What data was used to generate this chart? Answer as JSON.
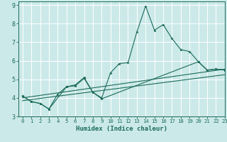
{
  "xlabel": "Humidex (Indice chaleur)",
  "xlim": [
    -0.5,
    23
  ],
  "ylim": [
    3,
    9.2
  ],
  "yticks": [
    3,
    4,
    5,
    6,
    7,
    8,
    9
  ],
  "xticks": [
    0,
    1,
    2,
    3,
    4,
    5,
    6,
    7,
    8,
    9,
    10,
    11,
    12,
    13,
    14,
    15,
    16,
    17,
    18,
    19,
    20,
    21,
    22,
    23
  ],
  "bg_color": "#cce9e9",
  "grid_color": "#ffffff",
  "line_color": "#1a6b5a",
  "line1_x": [
    0,
    1,
    2,
    3,
    4,
    5,
    6,
    7,
    8,
    9,
    10,
    11,
    12,
    13,
    14,
    15,
    16,
    17,
    18,
    19,
    20,
    21,
    22,
    23
  ],
  "line1_y": [
    4.1,
    3.8,
    3.7,
    3.4,
    4.2,
    4.6,
    4.7,
    5.1,
    4.3,
    4.0,
    5.35,
    5.85,
    5.9,
    7.55,
    8.95,
    7.65,
    7.95,
    7.2,
    6.6,
    6.5,
    5.95,
    5.5,
    5.55,
    5.5
  ],
  "line2_x": [
    0,
    1,
    2,
    3,
    5,
    6,
    7,
    8,
    9,
    20,
    21,
    22,
    23
  ],
  "line2_y": [
    4.1,
    3.8,
    3.7,
    3.4,
    4.6,
    4.65,
    5.05,
    4.3,
    3.95,
    5.95,
    5.5,
    5.55,
    5.5
  ],
  "line3_x": [
    0,
    23
  ],
  "line3_y": [
    4.0,
    5.55
  ],
  "line4_x": [
    0,
    23
  ],
  "line4_y": [
    3.85,
    5.25
  ]
}
